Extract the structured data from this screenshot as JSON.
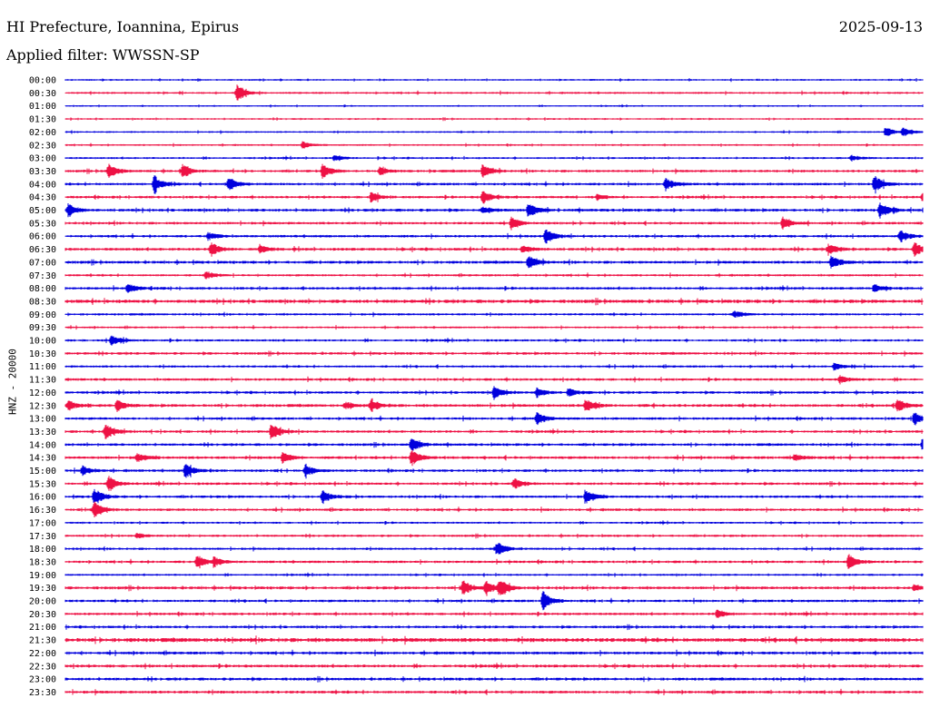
{
  "header": {
    "station": "HI Prefecture, Ioannina, Epirus",
    "date": "2025-09-13",
    "filter": "Applied filter: WWSSN-SP",
    "channel_label": "HNZ - 20000"
  },
  "colors": {
    "trace_even": "#0000dd",
    "trace_odd": "#ee1144",
    "background": "#ffffff",
    "text": "#000000"
  },
  "chart_data": {
    "type": "line",
    "plot_kind": "helicorder",
    "ylabel": "HNZ - 20000",
    "ylim_rows": [
      0,
      47
    ],
    "grid": false,
    "legend": "none",
    "row_labels": [
      "00:00",
      "00:30",
      "01:00",
      "01:30",
      "02:00",
      "02:30",
      "03:00",
      "03:30",
      "04:00",
      "04:30",
      "05:00",
      "05:30",
      "06:00",
      "06:30",
      "07:00",
      "07:30",
      "08:00",
      "08:30",
      "09:00",
      "09:30",
      "10:00",
      "10:30",
      "11:00",
      "11:30",
      "12:00",
      "12:30",
      "13:00",
      "13:30",
      "14:00",
      "14:30",
      "15:00",
      "15:30",
      "16:00",
      "16:30",
      "17:00",
      "17:30",
      "18:00",
      "18:30",
      "19:00",
      "19:30",
      "20:00",
      "20:30",
      "21:00",
      "21:30",
      "22:00",
      "22:30",
      "23:00",
      "23:30"
    ],
    "minutes_per_row": 30,
    "noise_level": [
      0.6,
      0.7,
      0.5,
      0.6,
      0.6,
      0.6,
      0.7,
      0.9,
      0.9,
      0.9,
      1.0,
      0.9,
      0.9,
      1.0,
      1.0,
      0.8,
      0.9,
      1.2,
      0.8,
      0.7,
      0.8,
      0.9,
      0.8,
      0.9,
      0.9,
      1.0,
      0.9,
      0.9,
      0.9,
      1.0,
      0.9,
      0.9,
      0.9,
      0.9,
      0.7,
      0.8,
      0.8,
      0.9,
      0.7,
      1.0,
      0.9,
      0.9,
      0.9,
      1.4,
      1.0,
      1.0,
      1.0,
      1.0
    ],
    "events": [
      {
        "row": 1,
        "minute": 6.0,
        "amp": 9
      },
      {
        "row": 4,
        "minute": 28.7,
        "amp": 6
      },
      {
        "row": 4,
        "minute": 29.3,
        "amp": 5
      },
      {
        "row": 5,
        "minute": 8.3,
        "amp": 4
      },
      {
        "row": 6,
        "minute": 9.4,
        "amp": 3
      },
      {
        "row": 6,
        "minute": 27.5,
        "amp": 3
      },
      {
        "row": 7,
        "minute": 1.5,
        "amp": 8
      },
      {
        "row": 7,
        "minute": 4.1,
        "amp": 7
      },
      {
        "row": 7,
        "minute": 9.0,
        "amp": 8
      },
      {
        "row": 7,
        "minute": 11.0,
        "amp": 4
      },
      {
        "row": 7,
        "minute": 14.6,
        "amp": 8
      },
      {
        "row": 8,
        "minute": 3.1,
        "amp": 10
      },
      {
        "row": 8,
        "minute": 5.7,
        "amp": 8
      },
      {
        "row": 8,
        "minute": 21.0,
        "amp": 7
      },
      {
        "row": 8,
        "minute": 28.3,
        "amp": 10
      },
      {
        "row": 9,
        "minute": 10.7,
        "amp": 6
      },
      {
        "row": 9,
        "minute": 14.6,
        "amp": 8
      },
      {
        "row": 9,
        "minute": 18.6,
        "amp": 3
      },
      {
        "row": 9,
        "minute": 30.0,
        "amp": 6
      },
      {
        "row": 10,
        "minute": 0.1,
        "amp": 7
      },
      {
        "row": 10,
        "minute": 14.6,
        "amp": 3
      },
      {
        "row": 10,
        "minute": 16.2,
        "amp": 8
      },
      {
        "row": 10,
        "minute": 28.5,
        "amp": 8
      },
      {
        "row": 11,
        "minute": 15.6,
        "amp": 7
      },
      {
        "row": 11,
        "minute": 25.1,
        "amp": 7
      },
      {
        "row": 12,
        "minute": 5.0,
        "amp": 4
      },
      {
        "row": 12,
        "minute": 16.8,
        "amp": 8
      },
      {
        "row": 12,
        "minute": 29.2,
        "amp": 7
      },
      {
        "row": 13,
        "minute": 5.1,
        "amp": 8
      },
      {
        "row": 13,
        "minute": 6.8,
        "amp": 5
      },
      {
        "row": 13,
        "minute": 16.0,
        "amp": 4
      },
      {
        "row": 13,
        "minute": 26.7,
        "amp": 6
      },
      {
        "row": 13,
        "minute": 29.7,
        "amp": 8
      },
      {
        "row": 14,
        "minute": 16.2,
        "amp": 8
      },
      {
        "row": 14,
        "minute": 26.8,
        "amp": 8
      },
      {
        "row": 15,
        "minute": 4.9,
        "amp": 4
      },
      {
        "row": 16,
        "minute": 2.2,
        "amp": 5
      },
      {
        "row": 16,
        "minute": 28.3,
        "amp": 5
      },
      {
        "row": 18,
        "minute": 23.4,
        "amp": 4
      },
      {
        "row": 20,
        "minute": 1.6,
        "amp": 6
      },
      {
        "row": 22,
        "minute": 26.9,
        "amp": 4
      },
      {
        "row": 23,
        "minute": 27.1,
        "amp": 4
      },
      {
        "row": 24,
        "minute": 15.0,
        "amp": 7
      },
      {
        "row": 24,
        "minute": 16.5,
        "amp": 5
      },
      {
        "row": 24,
        "minute": 17.6,
        "amp": 5
      },
      {
        "row": 25,
        "minute": 0.1,
        "amp": 6
      },
      {
        "row": 25,
        "minute": 1.8,
        "amp": 6
      },
      {
        "row": 25,
        "minute": 9.8,
        "amp": 4
      },
      {
        "row": 25,
        "minute": 10.7,
        "amp": 7
      },
      {
        "row": 25,
        "minute": 18.2,
        "amp": 7
      },
      {
        "row": 25,
        "minute": 29.1,
        "amp": 8
      },
      {
        "row": 26,
        "minute": 16.5,
        "amp": 7
      },
      {
        "row": 26,
        "minute": 29.7,
        "amp": 7
      },
      {
        "row": 27,
        "minute": 1.4,
        "amp": 10
      },
      {
        "row": 27,
        "minute": 7.2,
        "amp": 10
      },
      {
        "row": 28,
        "minute": 12.1,
        "amp": 8
      },
      {
        "row": 28,
        "minute": 30.0,
        "amp": 8
      },
      {
        "row": 29,
        "minute": 2.5,
        "amp": 5
      },
      {
        "row": 29,
        "minute": 7.6,
        "amp": 6
      },
      {
        "row": 29,
        "minute": 12.1,
        "amp": 9
      },
      {
        "row": 29,
        "minute": 25.5,
        "amp": 4
      },
      {
        "row": 30,
        "minute": 0.6,
        "amp": 5
      },
      {
        "row": 30,
        "minute": 4.2,
        "amp": 8
      },
      {
        "row": 30,
        "minute": 8.4,
        "amp": 7
      },
      {
        "row": 31,
        "minute": 1.5,
        "amp": 9
      },
      {
        "row": 31,
        "minute": 15.7,
        "amp": 6
      },
      {
        "row": 32,
        "minute": 1.0,
        "amp": 10
      },
      {
        "row": 32,
        "minute": 9.0,
        "amp": 7
      },
      {
        "row": 32,
        "minute": 18.2,
        "amp": 8
      },
      {
        "row": 33,
        "minute": 1.0,
        "amp": 9
      },
      {
        "row": 35,
        "minute": 2.5,
        "amp": 3
      },
      {
        "row": 36,
        "minute": 15.1,
        "amp": 8
      },
      {
        "row": 37,
        "minute": 4.6,
        "amp": 8
      },
      {
        "row": 37,
        "minute": 5.2,
        "amp": 5
      },
      {
        "row": 37,
        "minute": 27.4,
        "amp": 8
      },
      {
        "row": 39,
        "minute": 13.9,
        "amp": 9
      },
      {
        "row": 39,
        "minute": 14.7,
        "amp": 8
      },
      {
        "row": 39,
        "minute": 15.2,
        "amp": 9
      },
      {
        "row": 39,
        "minute": 29.7,
        "amp": 4
      },
      {
        "row": 40,
        "minute": 16.7,
        "amp": 12
      },
      {
        "row": 41,
        "minute": 22.8,
        "amp": 5
      }
    ]
  }
}
